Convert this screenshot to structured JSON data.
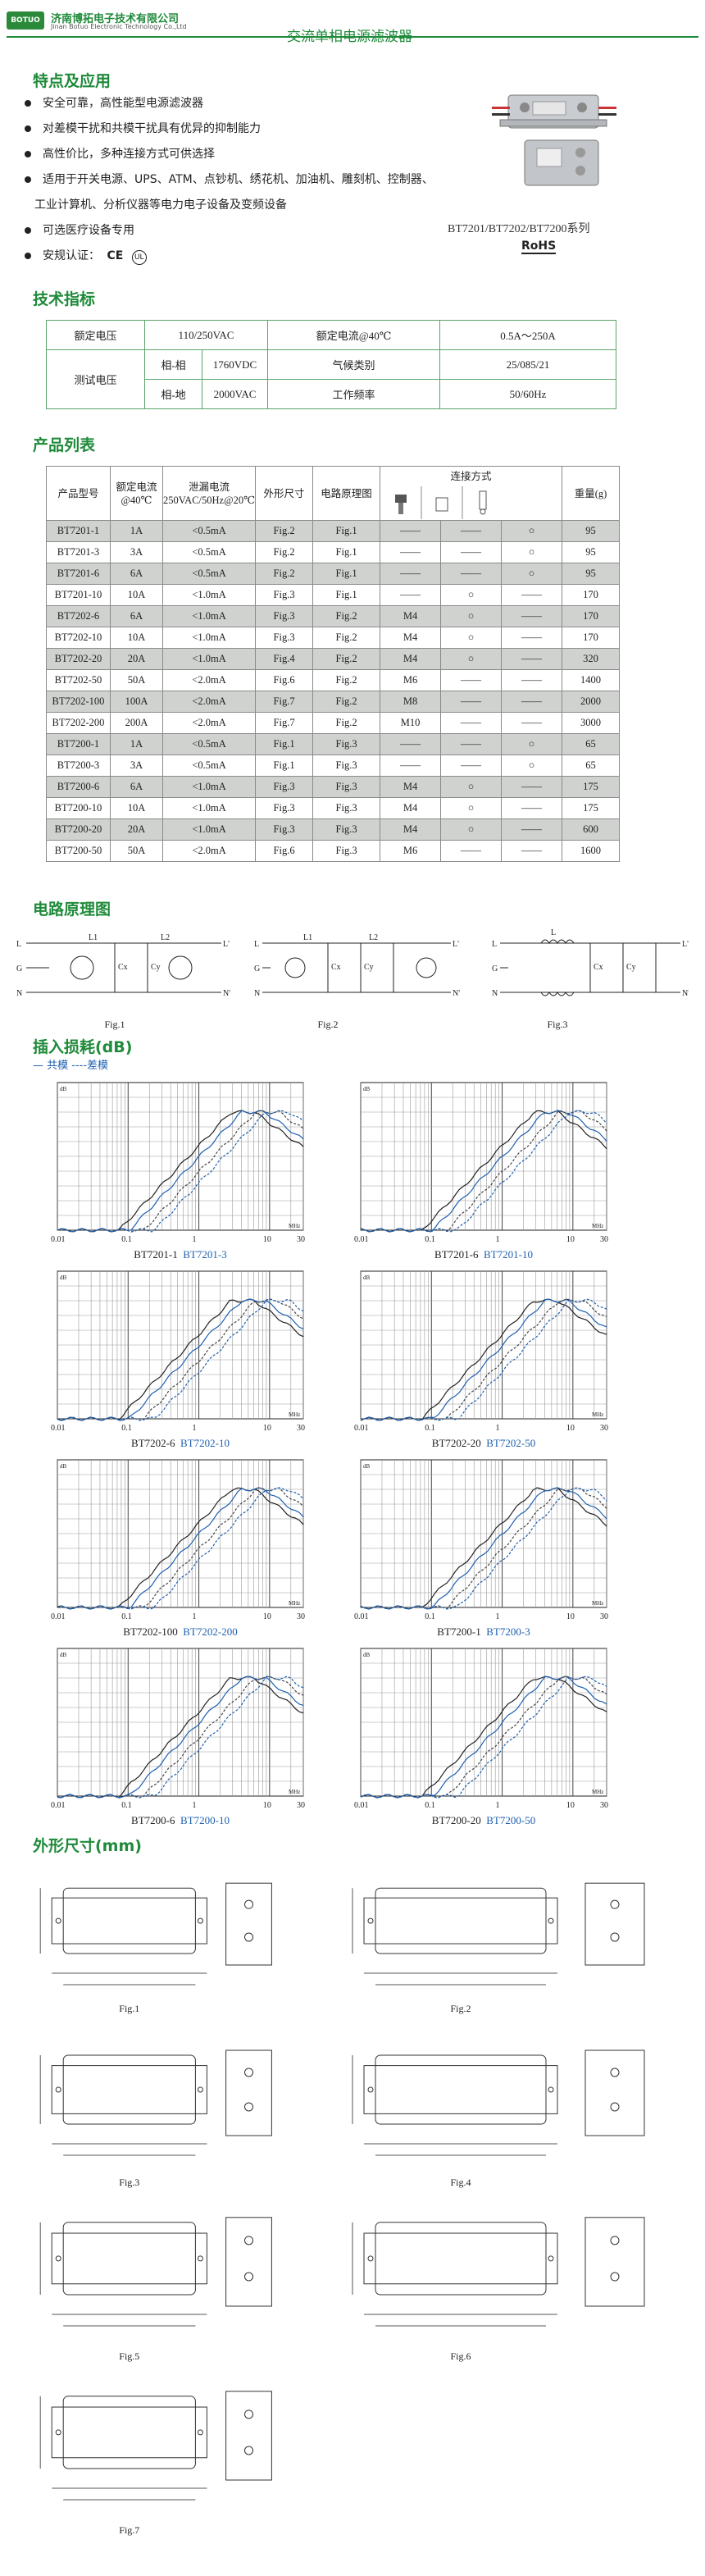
{
  "header": {
    "company_cn": "济南博拓电子技术有限公司",
    "company_en": "Jinan Botuo Electronic Technology Co.,Ltd",
    "logo": "BOTUO",
    "page_title": "交流单相电源滤波器"
  },
  "features": {
    "title": "特点及应用",
    "items": [
      "安全可靠，高性能型电源滤波器",
      "对差模干扰和共模干扰具有优异的抑制能力",
      "高性价比，多种连接方式可供选择",
      "适用于开关电源、UPS、ATM、点钞机、绣花机、加油机、雕刻机、控制器、",
      "可选医疗设备专用",
      "安规认证："
    ],
    "wrap_line": "工业计算机、分析仪器等电力电子设备及变频设备",
    "series": "BT7201/BT7202/BT7200系列",
    "rohs": "RoHS"
  },
  "spec": {
    "title": "技术指标",
    "rated_voltage_label": "额定电压",
    "rated_voltage": "110/250VAC",
    "rated_current_label": "额定电流@40℃",
    "rated_current": "0.5A～250A",
    "test_voltage_label": "测试电压",
    "ll_label": "相-相",
    "ll_value": "1760VDC",
    "climate_label": "气候类别",
    "climate_value": "25/085/21",
    "lg_label": "相-地",
    "lg_value": "2000VAC",
    "freq_label": "工作频率",
    "freq_value": "50/60Hz"
  },
  "products": {
    "title": "产品列表",
    "headers": {
      "model": "产品型号",
      "current": "额定电流@40℃",
      "leak": "泄漏电流250VAC/50Hz@20℃",
      "dim": "外形尺寸",
      "circuit": "电路原理图",
      "conn": "连接方式",
      "weight": "重量(g)"
    },
    "rows": [
      [
        "BT7201-1",
        "1A",
        "<0.5mA",
        "Fig.2",
        "Fig.1",
        "——",
        "——",
        "○",
        "95"
      ],
      [
        "BT7201-3",
        "3A",
        "<0.5mA",
        "Fig.2",
        "Fig.1",
        "——",
        "——",
        "○",
        "95"
      ],
      [
        "BT7201-6",
        "6A",
        "<0.5mA",
        "Fig.2",
        "Fig.1",
        "——",
        "——",
        "○",
        "95"
      ],
      [
        "BT7201-10",
        "10A",
        "<1.0mA",
        "Fig.3",
        "Fig.1",
        "——",
        "○",
        "——",
        "170"
      ],
      [
        "BT7202-6",
        "6A",
        "<1.0mA",
        "Fig.3",
        "Fig.2",
        "M4",
        "○",
        "——",
        "170"
      ],
      [
        "BT7202-10",
        "10A",
        "<1.0mA",
        "Fig.3",
        "Fig.2",
        "M4",
        "○",
        "——",
        "170"
      ],
      [
        "BT7202-20",
        "20A",
        "<1.0mA",
        "Fig.4",
        "Fig.2",
        "M4",
        "○",
        "——",
        "320"
      ],
      [
        "BT7202-50",
        "50A",
        "<2.0mA",
        "Fig.6",
        "Fig.2",
        "M6",
        "——",
        "——",
        "1400"
      ],
      [
        "BT7202-100",
        "100A",
        "<2.0mA",
        "Fig.7",
        "Fig.2",
        "M8",
        "——",
        "——",
        "2000"
      ],
      [
        "BT7202-200",
        "200A",
        "<2.0mA",
        "Fig.7",
        "Fig.2",
        "M10",
        "——",
        "——",
        "3000"
      ],
      [
        "BT7200-1",
        "1A",
        "<0.5mA",
        "Fig.1",
        "Fig.3",
        "——",
        "——",
        "○",
        "65"
      ],
      [
        "BT7200-3",
        "3A",
        "<0.5mA",
        "Fig.1",
        "Fig.3",
        "——",
        "——",
        "○",
        "65"
      ],
      [
        "BT7200-6",
        "6A",
        "<1.0mA",
        "Fig.3",
        "Fig.3",
        "M4",
        "○",
        "——",
        "175"
      ],
      [
        "BT7200-10",
        "10A",
        "<1.0mA",
        "Fig.3",
        "Fig.3",
        "M4",
        "○",
        "——",
        "175"
      ],
      [
        "BT7200-20",
        "20A",
        "<1.0mA",
        "Fig.3",
        "Fig.3",
        "M4",
        "○",
        "——",
        "600"
      ],
      [
        "BT7200-50",
        "50A",
        "<2.0mA",
        "Fig.6",
        "Fig.3",
        "M6",
        "——",
        "——",
        "1600"
      ]
    ]
  },
  "circuit": {
    "title": "电路原理图",
    "figs": [
      "Fig.1",
      "Fig.2",
      "Fig.3"
    ]
  },
  "loss": {
    "title": "插入损耗(dB)",
    "legend": "— 共模 ----差模",
    "ticks": [
      "0.01",
      "0.1",
      "1",
      "10",
      "30"
    ],
    "unit": "MHz",
    "db": "dB",
    "charts": [
      [
        "BT7201-1",
        "BT7201-3"
      ],
      [
        "BT7201-6",
        "BT7201-10"
      ],
      [
        "BT7202-6",
        "BT7202-10"
      ],
      [
        "BT7202-20",
        "BT7202-50"
      ],
      [
        "BT7202-100",
        "BT7202-200"
      ],
      [
        "BT7200-1",
        "BT7200-3"
      ],
      [
        "BT7200-6",
        "BT7200-10"
      ],
      [
        "BT7200-20",
        "BT7200-50"
      ]
    ]
  },
  "dims": {
    "title": "外形尺寸(mm)",
    "figs": [
      "Fig.1",
      "Fig.2",
      "Fig.3",
      "Fig.4",
      "Fig.5",
      "Fig.6",
      "Fig.7"
    ]
  }
}
